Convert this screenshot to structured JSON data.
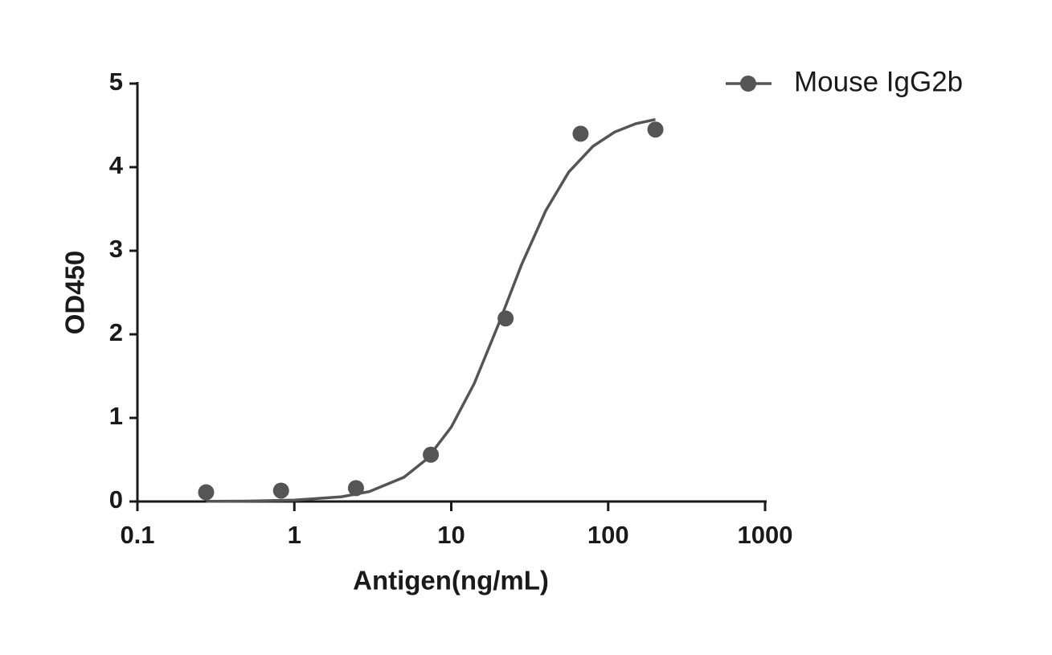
{
  "chart_data": {
    "type": "scatter",
    "xlabel": "Antigen(ng/mL)",
    "ylabel": "OD450",
    "xscale": "log",
    "xlim": [
      0.1,
      1000
    ],
    "xticks": [
      0.1,
      1,
      10,
      100,
      1000
    ],
    "ylim": [
      0,
      5
    ],
    "yticks": [
      0,
      1,
      2,
      3,
      4,
      5
    ],
    "legend": "top-right",
    "series": [
      {
        "name": "Mouse IgG2b",
        "color": "#555555",
        "x": [
          0.274,
          0.823,
          2.47,
          7.41,
          22.2,
          66.7,
          200
        ],
        "values": [
          0.11,
          0.13,
          0.16,
          0.56,
          2.19,
          4.4,
          4.45
        ]
      }
    ],
    "fit": {
      "color": "#555555",
      "x": [
        0.274,
        0.5,
        1,
        2,
        3,
        5,
        7,
        10,
        14,
        20,
        28,
        40,
        56,
        80,
        110,
        150,
        200
      ],
      "values": [
        0.0015,
        0.0046,
        0.016,
        0.057,
        0.118,
        0.29,
        0.51,
        0.89,
        1.41,
        2.12,
        2.83,
        3.48,
        3.94,
        4.25,
        4.42,
        4.52,
        4.57
      ]
    }
  }
}
